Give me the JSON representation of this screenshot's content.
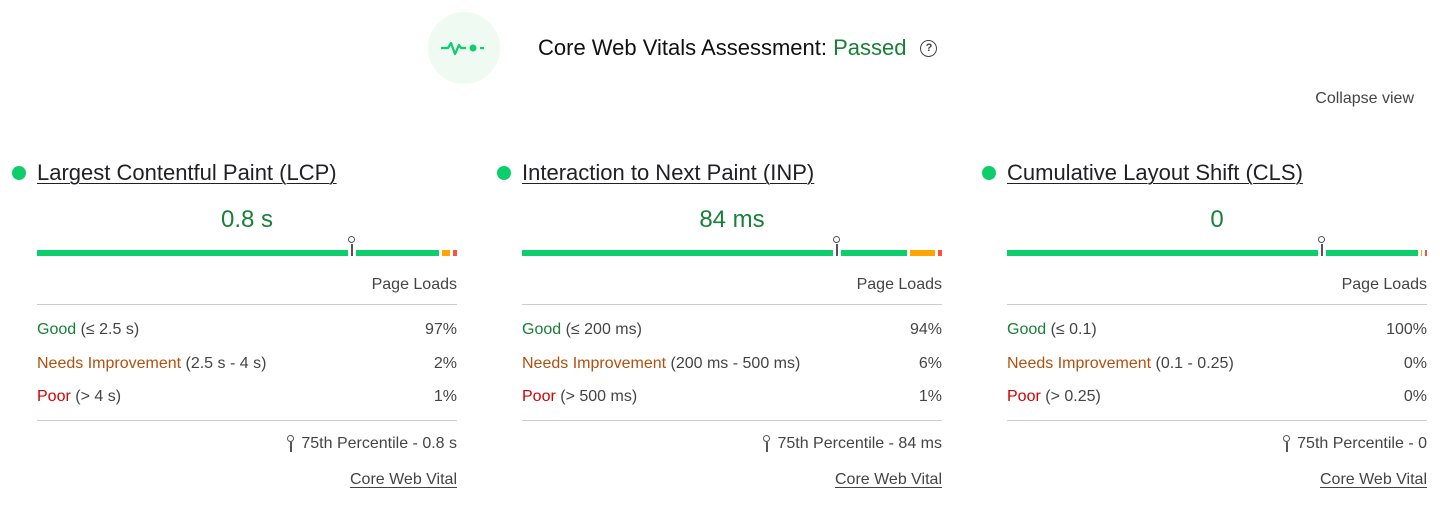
{
  "header": {
    "icon": "heartbeat-pulse-icon",
    "title": "Core Web Vitals Assessment: ",
    "status": "Passed",
    "help_icon": "question-circle-icon"
  },
  "collapse_label": "Collapse view",
  "colors": {
    "good": "#0cce6b",
    "needs_improvement": "#ffa400",
    "poor": "#ff4e42",
    "status_text": "#188038"
  },
  "metrics": [
    {
      "title": "Largest Contentful Paint (LCP)",
      "value": "0.8 s",
      "percentile_position": 0.75,
      "distribution": [
        97,
        2,
        1
      ],
      "loads_label": "Page Loads",
      "rows": [
        {
          "label": "Good",
          "range": " (≤ 2.5 s)",
          "pct": "97%"
        },
        {
          "label": "Needs Improvement",
          "range": " (2.5 s - 4 s)",
          "pct": "2%"
        },
        {
          "label": "Poor",
          "range": " (> 4 s)",
          "pct": "1%"
        }
      ],
      "percentile": "75th Percentile - 0.8 s",
      "link": "Core Web Vital"
    },
    {
      "title": "Interaction to Next Paint (INP)",
      "value": "84 ms",
      "percentile_position": 0.75,
      "distribution": [
        94,
        6,
        1
      ],
      "loads_label": "Page Loads",
      "rows": [
        {
          "label": "Good",
          "range": " (≤ 200 ms)",
          "pct": "94%"
        },
        {
          "label": "Needs Improvement",
          "range": " (200 ms - 500 ms)",
          "pct": "6%"
        },
        {
          "label": "Poor",
          "range": " (> 500 ms)",
          "pct": "1%"
        }
      ],
      "percentile": "75th Percentile - 84 ms",
      "link": "Core Web Vital"
    },
    {
      "title": "Cumulative Layout Shift (CLS)",
      "value": "0",
      "percentile_position": 0.75,
      "distribution": [
        100,
        0,
        0
      ],
      "loads_label": "Page Loads",
      "rows": [
        {
          "label": "Good",
          "range": " (≤ 0.1)",
          "pct": "100%"
        },
        {
          "label": "Needs Improvement",
          "range": " (0.1 - 0.25)",
          "pct": "0%"
        },
        {
          "label": "Poor",
          "range": " (> 0.25)",
          "pct": "0%"
        }
      ],
      "percentile": "75th Percentile - 0",
      "link": "Core Web Vital"
    }
  ]
}
